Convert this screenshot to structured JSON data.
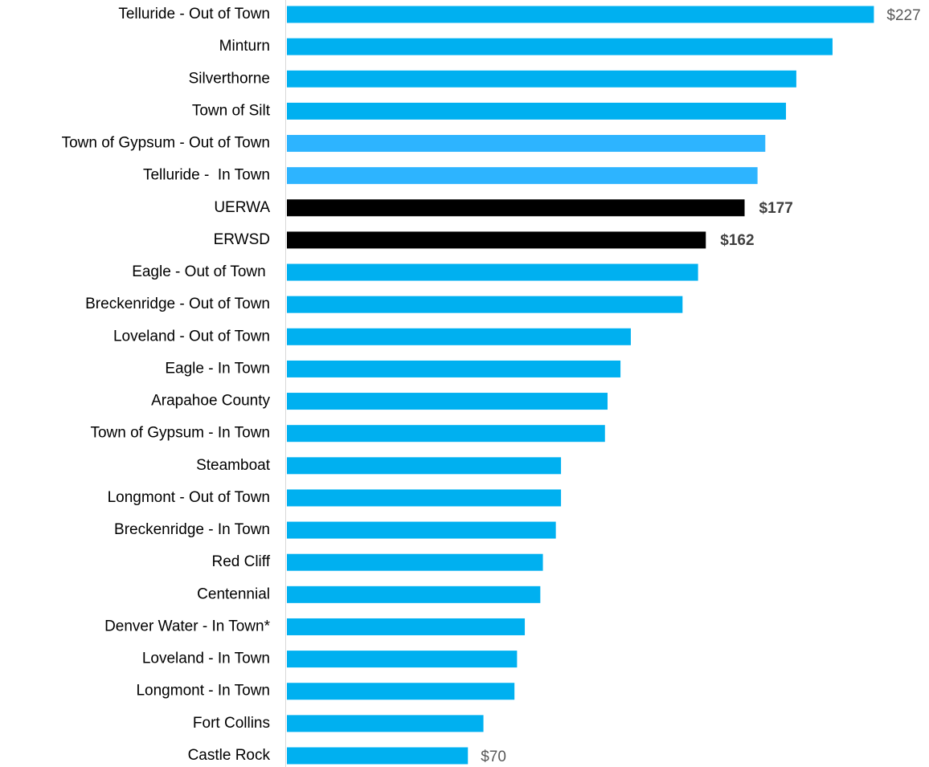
{
  "chart_data": {
    "type": "barh",
    "categories": [
      "Telluride - Out of Town",
      "Minturn",
      "Silverthorne",
      "Town of Silt",
      "Town of Gypsum - Out of Town",
      "Telluride -  In Town",
      "UERWA",
      "ERWSD",
      "Eagle - Out of Town ",
      "Breckenridge - Out of Town",
      "Loveland - Out of Town",
      "Eagle - In Town",
      "Arapahoe County",
      "Town of Gypsum - In Town",
      "Steamboat",
      "Longmont - Out of Town",
      "Breckenridge - In Town",
      "Red Cliff",
      "Centennial",
      "Denver Water - In Town*",
      "Loveland - In Town",
      "Longmont - In Town",
      "Fort Collins",
      "Castle Rock"
    ],
    "values": [
      227,
      211,
      197,
      193,
      185,
      182,
      177,
      162,
      159,
      153,
      133,
      129,
      124,
      123,
      106,
      106,
      104,
      99,
      98,
      92,
      89,
      88,
      76,
      70
    ],
    "value_labels": [
      "$227",
      null,
      null,
      null,
      null,
      null,
      "$177",
      "$162",
      null,
      null,
      null,
      null,
      null,
      null,
      null,
      null,
      null,
      null,
      null,
      null,
      null,
      null,
      null,
      "$70"
    ],
    "colors": [
      "#00b0f0",
      "#00b0f0",
      "#00b0f0",
      "#00b0f0",
      "#2db4ff",
      "#2db4ff",
      "#000000",
      "#000000",
      "#00b0f0",
      "#00b0f0",
      "#00b0f0",
      "#00b0f0",
      "#00b0f0",
      "#00b0f0",
      "#00b0f0",
      "#00b0f0",
      "#00b0f0",
      "#00b0f0",
      "#00b0f0",
      "#00b0f0",
      "#00b0f0",
      "#00b0f0",
      "#00b0f0",
      "#00b0f0"
    ],
    "xlim": [
      0,
      248
    ]
  }
}
